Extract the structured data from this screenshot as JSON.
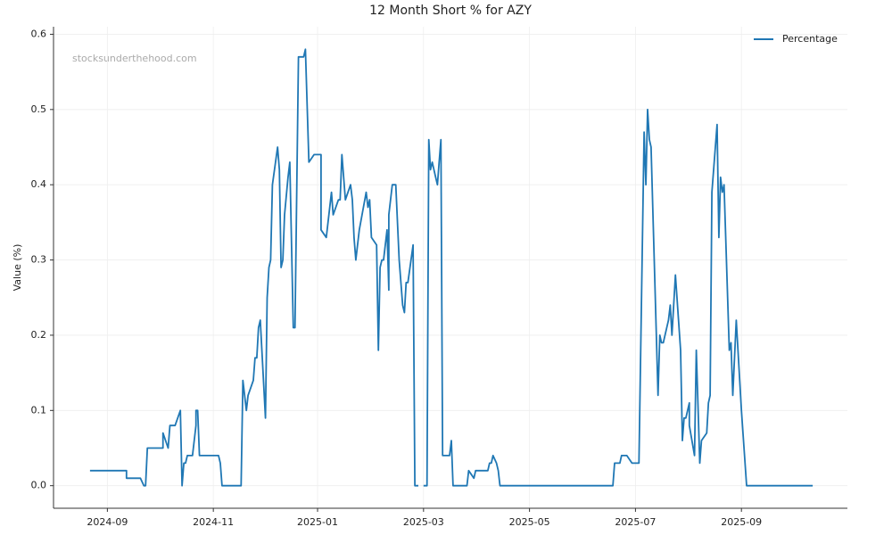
{
  "chart_data": {
    "type": "line",
    "title": "12 Month Short % for AZY",
    "ylabel": "Value (%)",
    "watermark": "stocksunderthehood.com",
    "x": [
      0,
      21,
      21,
      29,
      31,
      32,
      33,
      42,
      42,
      45,
      46,
      49,
      52,
      53,
      54,
      55,
      56,
      59,
      61,
      61,
      62,
      63,
      74,
      75,
      76,
      87,
      88,
      90,
      91,
      94,
      95,
      96,
      97,
      98,
      101,
      102,
      103,
      104,
      105,
      108,
      109,
      110,
      111,
      112,
      114,
      115,
      117,
      118,
      120,
      123,
      124,
      126,
      129,
      133,
      133,
      136,
      139,
      140,
      143,
      144,
      145,
      147,
      150,
      151,
      152,
      153,
      155,
      159,
      160,
      161,
      162,
      165,
      166,
      167,
      168,
      169,
      171,
      172,
      172,
      174,
      176,
      178,
      180,
      181,
      182,
      183,
      186,
      187,
      189,
      190,
      192,
      194,
      195,
      196,
      197,
      199,
      200,
      201,
      202,
      203,
      207,
      208,
      209,
      217,
      218,
      221,
      222,
      229,
      230,
      231,
      232,
      234,
      235,
      236,
      301,
      302,
      305,
      306,
      309,
      312,
      316,
      319,
      320,
      321,
      322,
      323,
      327,
      328,
      329,
      330,
      333,
      334,
      335,
      337,
      340,
      341,
      342,
      343,
      345,
      345,
      348,
      349,
      351,
      352,
      355,
      356,
      357,
      358,
      361,
      362,
      363,
      364,
      365,
      368,
      369,
      370,
      372,
      375,
      378,
      416
    ],
    "series": [
      {
        "name": "Percentage",
        "color": "#1f77b4",
        "values": [
          0.02,
          0.02,
          0.01,
          0.01,
          0,
          0,
          0.05,
          0.05,
          0.07,
          0.05,
          0.08,
          0.08,
          0.1,
          0,
          0.03,
          0.03,
          0.04,
          0.04,
          0.08,
          0.1,
          0.1,
          0.04,
          0.04,
          0.03,
          0,
          0,
          0.14,
          0.1,
          0.12,
          0.14,
          0.17,
          0.17,
          0.21,
          0.22,
          0.09,
          0.25,
          0.29,
          0.3,
          0.4,
          0.45,
          0.42,
          0.29,
          0.3,
          0.36,
          0.41,
          0.43,
          0.21,
          0.21,
          0.57,
          0.57,
          0.58,
          0.43,
          0.44,
          0.44,
          0.34,
          0.33,
          0.39,
          0.36,
          0.38,
          0.38,
          0.44,
          0.38,
          0.4,
          0.38,
          0.33,
          0.3,
          0.34,
          0.39,
          0.37,
          0.38,
          0.33,
          0.32,
          0.18,
          0.29,
          0.3,
          0.3,
          0.34,
          0.26,
          0.36,
          0.4,
          0.4,
          0.3,
          0.24,
          0.23,
          0.27,
          0.27,
          0.32,
          0,
          0,
          null,
          0,
          0,
          0.46,
          0.42,
          0.43,
          0.41,
          0.4,
          0.43,
          0.46,
          0.04,
          0.04,
          0.06,
          0,
          0,
          0.02,
          0.01,
          0.02,
          0.02,
          0.03,
          0.03,
          0.04,
          0.03,
          0.02,
          0,
          0,
          0.03,
          0.03,
          0.04,
          0.04,
          0.03,
          0.03,
          0.47,
          0.4,
          0.5,
          0.46,
          0.45,
          0.12,
          0.2,
          0.19,
          0.19,
          0.22,
          0.24,
          0.2,
          0.28,
          0.18,
          0.06,
          0.09,
          0.09,
          0.11,
          0.08,
          0.04,
          0.18,
          0.03,
          0.06,
          0.07,
          0.11,
          0.12,
          0.39,
          0.48,
          0.33,
          0.41,
          0.39,
          0.4,
          0.18,
          0.19,
          0.12,
          0.22,
          0.1,
          0,
          0
        ]
      }
    ],
    "xlim": [
      -21,
      436
    ],
    "xticks": [
      {
        "value": 10,
        "label": "2024-09"
      },
      {
        "value": 71,
        "label": "2024-11"
      },
      {
        "value": 131,
        "label": "2025-01"
      },
      {
        "value": 192,
        "label": "2025-03"
      },
      {
        "value": 253,
        "label": "2025-05"
      },
      {
        "value": 314,
        "label": "2025-07"
      },
      {
        "value": 375,
        "label": "2025-09"
      }
    ],
    "ylim": [
      -0.03,
      0.61
    ],
    "yticks": [
      {
        "value": 0,
        "label": "0.0"
      },
      0.1,
      0.2,
      0.3,
      0.4,
      0.5,
      0.6
    ],
    "grid": true,
    "legend": "upper right"
  }
}
